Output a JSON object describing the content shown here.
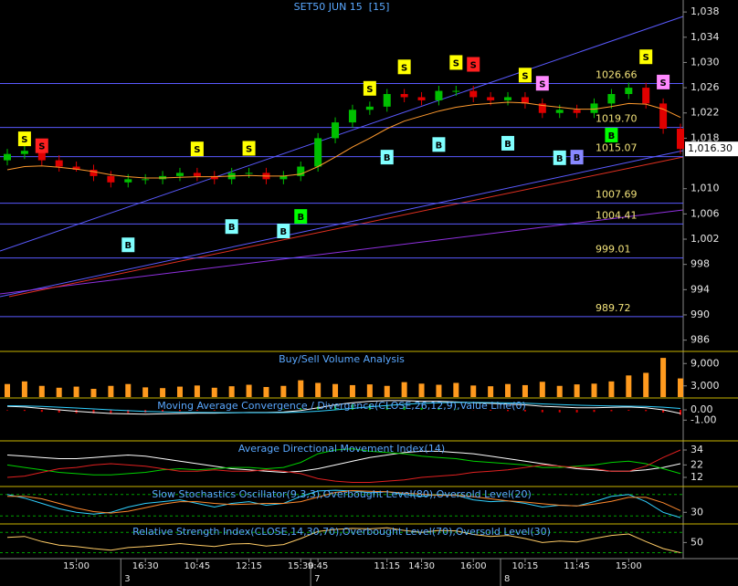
{
  "chart_data": [
    {
      "type": "candlestick",
      "title": "SET50 JUN 15  [15]",
      "categories": [
        null,
        null,
        null,
        null,
        "15:00",
        null,
        null,
        null,
        "16:30",
        null,
        null,
        "10:45",
        null,
        null,
        "12:15",
        null,
        null,
        "15:30",
        "9:45",
        null,
        null,
        null,
        "11:15",
        null,
        "14:30",
        null,
        null,
        "16:00",
        null,
        null,
        "10:15",
        null,
        null,
        "11:45",
        null,
        null,
        "15:00",
        null,
        null,
        null
      ],
      "day_labels": [
        null,
        null,
        null,
        null,
        null,
        null,
        null,
        "3",
        null,
        null,
        null,
        null,
        null,
        null,
        null,
        null,
        null,
        null,
        "7",
        null,
        null,
        null,
        null,
        null,
        null,
        null,
        null,
        null,
        null,
        "8",
        null,
        null,
        null,
        null,
        null,
        null,
        null,
        null,
        null,
        null
      ],
      "open": [
        1014.5,
        1015.5,
        1016,
        1014.5,
        1013.5,
        1013,
        1012,
        1011,
        1011.5,
        1011.5,
        1012,
        1012.5,
        1012,
        1011.5,
        1012.5,
        1012.5,
        1011.5,
        1012,
        1013.5,
        1018,
        1020.5,
        1022.5,
        1023,
        1025,
        1024.5,
        1024,
        1025.5,
        1025.5,
        1024.5,
        1024,
        1024.5,
        1023.5,
        1022,
        1022.5,
        1022,
        1023.5,
        1025,
        1026,
        1023.5,
        1019.5
      ],
      "high": [
        1016.3,
        1016.8,
        1016.8,
        1015.3,
        1014.3,
        1013.8,
        1012.8,
        1012.3,
        1012.3,
        1012.8,
        1013.3,
        1013.3,
        1012.8,
        1013.3,
        1013.3,
        1013.3,
        1012.8,
        1014.3,
        1018.8,
        1021.3,
        1023.3,
        1023.8,
        1025.8,
        1025.8,
        1025.3,
        1026.3,
        1026.3,
        1026.3,
        1025.3,
        1025.3,
        1025.3,
        1024.3,
        1023.3,
        1023.3,
        1024.3,
        1025.8,
        1026.8,
        1026.8,
        1024.3,
        1020.3
      ],
      "low": [
        1013.7,
        1014.7,
        1013.7,
        1012.7,
        1012.7,
        1011.2,
        1010.2,
        1010.2,
        1010.7,
        1010.7,
        1011.2,
        1011.2,
        1010.7,
        1010.7,
        1011.7,
        1010.7,
        1010.7,
        1011.2,
        1012.7,
        1017.2,
        1019.7,
        1021.7,
        1022.2,
        1023.7,
        1023.2,
        1023.2,
        1024.7,
        1023.7,
        1023.2,
        1023.2,
        1022.7,
        1021.2,
        1021.2,
        1021.2,
        1021.2,
        1022.7,
        1024.2,
        1022.7,
        1018.7,
        1015.5
      ],
      "close": [
        1015.5,
        1016,
        1014.5,
        1013.5,
        1013,
        1012,
        1011,
        1011.5,
        1011.5,
        1012,
        1012.5,
        1012,
        1011.5,
        1012.5,
        1012.5,
        1011.5,
        1012,
        1013.5,
        1018,
        1020.5,
        1022.5,
        1023,
        1025,
        1024.5,
        1024,
        1025.5,
        1025.5,
        1024.5,
        1024,
        1024.5,
        1023.5,
        1022,
        1022.5,
        1022,
        1023.5,
        1025,
        1026,
        1023.5,
        1019.5,
        1016.3
      ],
      "up_color": "#00c000",
      "down_color": "#e00000",
      "series": [
        {
          "color": "#ff9a2e",
          "values": [
            1013,
            1013.5,
            1013.6,
            1013.4,
            1013.1,
            1012.7,
            1012.2,
            1011.9,
            1011.7,
            1011.7,
            1011.8,
            1011.9,
            1011.9,
            1012,
            1012.1,
            1012,
            1012,
            1012.3,
            1013.5,
            1015,
            1016.6,
            1018,
            1019.5,
            1020.7,
            1021.5,
            1022.3,
            1022.9,
            1023.3,
            1023.5,
            1023.7,
            1023.6,
            1023.2,
            1022.9,
            1022.6,
            1022.6,
            1023,
            1023.5,
            1023.4,
            1022.6,
            1021.3
          ]
        }
      ],
      "ylim": [
        984.5,
        1039.9
      ],
      "yticks": [
        {
          "value": 1038,
          "label": "1,038"
        },
        {
          "value": 1034,
          "label": "1,034"
        },
        {
          "value": 1030,
          "label": "1,030"
        },
        {
          "value": 1026,
          "label": "1,026"
        },
        {
          "value": 1022,
          "label": "1,022"
        },
        {
          "value": 1018,
          "label": "1,018"
        },
        {
          "value": 1010,
          "label": "1,010"
        },
        {
          "value": 1006,
          "label": "1,006"
        },
        {
          "value": 1002,
          "label": "1,002"
        },
        998,
        994,
        990,
        986
      ],
      "price_label": {
        "value": 1016.3,
        "label": "1,016.30"
      },
      "price_levels": [
        1026.66,
        {
          "value": 1019.7,
          "label": "1019.70"
        },
        1015.07,
        1007.69,
        1004.41,
        999.01,
        989.72
      ],
      "signals": [
        {
          "label": "S",
          "x": 1,
          "y": 1017.9,
          "color": "#ffff00"
        },
        {
          "label": "S",
          "x": 2,
          "y": 1016.8,
          "color": "#ff2020"
        },
        {
          "label": "S",
          "x": 11,
          "y": 1016.3,
          "color": "#ffff00"
        },
        {
          "label": "S",
          "x": 14,
          "y": 1016.4,
          "color": "#ffff00"
        },
        {
          "label": "S",
          "x": 21,
          "y": 1025.9,
          "color": "#ffff00"
        },
        {
          "label": "S",
          "x": 23,
          "y": 1029.3,
          "color": "#ffff00"
        },
        {
          "label": "S",
          "x": 26,
          "y": 1030,
          "color": "#ffff00"
        },
        {
          "label": "S",
          "x": 27,
          "y": 1029.7,
          "color": "#ff2020"
        },
        {
          "label": "S",
          "x": 30,
          "y": 1028,
          "color": "#ffff00"
        },
        {
          "label": "S",
          "x": 31,
          "y": 1026.7,
          "color": "#ff88ff"
        },
        {
          "label": "S",
          "x": 37,
          "y": 1030.9,
          "color": "#ffff00"
        },
        {
          "label": "S",
          "x": 38,
          "y": 1026.9,
          "color": "#ff88ff"
        },
        {
          "label": "B",
          "x": 7,
          "y": 1001.1,
          "color": "#80ffff"
        },
        {
          "label": "B",
          "x": 13,
          "y": 1004,
          "color": "#80ffff"
        },
        {
          "label": "B",
          "x": 16,
          "y": 1003.3,
          "color": "#80ffff"
        },
        {
          "label": "B",
          "x": 17,
          "y": 1005.6,
          "color": "#00ff00"
        },
        {
          "label": "B",
          "x": 22,
          "y": 1015,
          "color": "#80ffff"
        },
        {
          "label": "B",
          "x": 25,
          "y": 1017,
          "color": "#80ffff"
        },
        {
          "label": "B",
          "x": 29,
          "y": 1017.2,
          "color": "#80ffff"
        },
        {
          "label": "B",
          "x": 32,
          "y": 1014.9,
          "color": "#80ffff"
        },
        {
          "label": "B",
          "x": 33,
          "y": 1015,
          "color": "#8888ff"
        },
        {
          "label": "B",
          "x": 35,
          "y": 1018.5,
          "color": "#00ff00"
        }
      ]
    },
    {
      "type": "bar",
      "title": "Buy/Sell Volume Analysis",
      "color": "#ff9a1e",
      "values": [
        3500,
        4200,
        3000,
        2500,
        2800,
        2200,
        3000,
        3500,
        2600,
        2400,
        2800,
        3100,
        2500,
        2900,
        3300,
        2700,
        3000,
        4500,
        3800,
        3500,
        3200,
        3400,
        3000,
        4000,
        3600,
        3300,
        3800,
        3100,
        2900,
        3500,
        3200,
        4100,
        3000,
        3400,
        3600,
        4200,
        5800,
        6500,
        10500,
        5000
      ],
      "ylim": [
        0,
        12000
      ],
      "yticks": [
        {
          "value": 9000,
          "label": "9,000"
        },
        {
          "value": 3000,
          "label": "3,000"
        }
      ]
    },
    {
      "type": "macd",
      "title": "Moving Average Convergence / Divergence(CLOSE,26,12,9),Value Line(0)",
      "series": [
        {
          "color": "#ffffff",
          "values": [
            0.35,
            0.28,
            0.14,
            0,
            -0.14,
            -0.25,
            -0.35,
            -0.39,
            -0.42,
            -0.39,
            -0.35,
            -0.32,
            -0.32,
            -0.28,
            -0.25,
            -0.25,
            -0.21,
            -0.07,
            0.21,
            0.49,
            0.7,
            0.84,
            0.9,
            0.9,
            0.84,
            0.84,
            0.77,
            0.7,
            0.63,
            0.56,
            0.49,
            0.35,
            0.28,
            0.21,
            0.21,
            0.25,
            0.28,
            0.21,
            0,
            -0.35
          ]
        },
        {
          "color": "#30d0ff",
          "values": [
            0.4,
            0.38,
            0.33,
            0.26,
            0.18,
            0.09,
            0,
            -0.08,
            -0.15,
            -0.2,
            -0.23,
            -0.25,
            -0.26,
            -0.27,
            -0.27,
            -0.27,
            -0.26,
            -0.22,
            -0.13,
            0,
            0.15,
            0.3,
            0.43,
            0.55,
            0.63,
            0.69,
            0.72,
            0.72,
            0.71,
            0.68,
            0.64,
            0.58,
            0.52,
            0.46,
            0.41,
            0.38,
            0.36,
            0.33,
            0.26,
            0.14
          ]
        }
      ],
      "histogram": [
        -0.05,
        -0.1,
        -0.19,
        -0.26,
        -0.32,
        -0.34,
        -0.35,
        -0.31,
        -0.27,
        -0.19,
        -0.12,
        -0.07,
        -0.06,
        -0.01,
        0.02,
        0.02,
        0.05,
        0.15,
        0.34,
        0.49,
        0.55,
        0.54,
        0.47,
        0.35,
        0.21,
        0.15,
        0.05,
        -0.02,
        -0.08,
        -0.12,
        -0.15,
        -0.23,
        -0.24,
        -0.25,
        -0.2,
        -0.13,
        -0.08,
        -0.12,
        -0.26,
        -0.49
      ],
      "up_color": "#00c000",
      "down_color": "#e00000",
      "ylim": [
        -2.93,
        1.07
      ],
      "yticks": [
        {
          "value": 0,
          "label": "0.00"
        },
        {
          "value": -1,
          "label": "-1.00"
        }
      ]
    },
    {
      "type": "line",
      "title": "Average Directional Movement Index(14)",
      "series": [
        {
          "color": "#ffffff",
          "values": [
            30,
            29,
            28,
            27,
            27,
            28,
            29,
            30,
            29,
            27,
            25,
            23,
            21,
            19,
            18,
            17,
            16,
            17,
            19,
            22,
            25,
            28,
            30,
            32,
            33,
            33,
            32,
            31,
            29,
            27,
            25,
            23,
            21,
            19,
            18,
            17,
            17,
            18,
            20,
            23
          ]
        },
        {
          "color": "#00d000",
          "values": [
            22,
            20,
            18,
            16,
            15,
            14,
            14,
            15,
            16,
            18,
            19,
            18,
            19,
            20,
            20,
            19,
            20,
            24,
            31,
            34,
            35,
            33,
            32,
            31,
            29,
            28,
            27,
            25,
            24,
            23,
            22,
            20,
            20,
            21,
            22,
            24,
            25,
            23,
            19,
            15
          ]
        },
        {
          "color": "#e02020",
          "values": [
            12,
            13,
            16,
            19,
            20,
            22,
            23,
            22,
            21,
            19,
            17,
            17,
            18,
            17,
            17,
            18,
            17,
            15,
            11,
            9,
            8,
            8,
            9,
            10,
            12,
            13,
            14,
            16,
            17,
            18,
            20,
            22,
            21,
            20,
            19,
            17,
            17,
            21,
            28,
            34
          ]
        }
      ],
      "ylim": [
        5.4,
        40.6
      ],
      "yticks": [
        34,
        22,
        12
      ]
    },
    {
      "type": "line",
      "title": "Slow Stochastics Oscillator(9,3,3),Overbought Level(80),Oversold Level(20)",
      "series": [
        {
          "color": "#30d0ff",
          "values": [
            80,
            70,
            55,
            40,
            30,
            25,
            30,
            45,
            55,
            60,
            65,
            55,
            45,
            55,
            60,
            50,
            55,
            75,
            90,
            92,
            90,
            85,
            88,
            80,
            75,
            80,
            78,
            65,
            60,
            62,
            55,
            45,
            50,
            48,
            60,
            75,
            80,
            60,
            30,
            15
          ]
        },
        {
          "color": "#ff8a2e",
          "values": [
            75,
            75,
            68,
            55,
            42,
            32,
            28,
            33,
            43,
            53,
            60,
            60,
            55,
            52,
            53,
            55,
            55,
            60,
            73,
            86,
            91,
            89,
            88,
            84,
            81,
            78,
            78,
            74,
            68,
            62,
            59,
            54,
            50,
            48,
            53,
            61,
            72,
            72,
            57,
            35
          ]
        }
      ],
      "levels": [
        80,
        20
      ],
      "ylim": [
        0,
        100
      ],
      "yticks": [
        30
      ]
    },
    {
      "type": "line",
      "title": "Relative Strength Index(CLOSE,14,30,70),Overbought Level(70),Oversold Level(30)",
      "series": [
        {
          "color": "#ffcc66",
          "values": [
            60,
            62,
            52,
            45,
            42,
            38,
            35,
            40,
            42,
            45,
            48,
            45,
            42,
            47,
            48,
            43,
            46,
            58,
            72,
            76,
            78,
            77,
            79,
            74,
            70,
            74,
            73,
            66,
            62,
            64,
            58,
            50,
            53,
            51,
            58,
            64,
            67,
            52,
            38,
            30
          ]
        }
      ],
      "levels": [
        70,
        30
      ],
      "ylim": [
        20,
        85
      ],
      "yticks": [
        50
      ]
    }
  ]
}
